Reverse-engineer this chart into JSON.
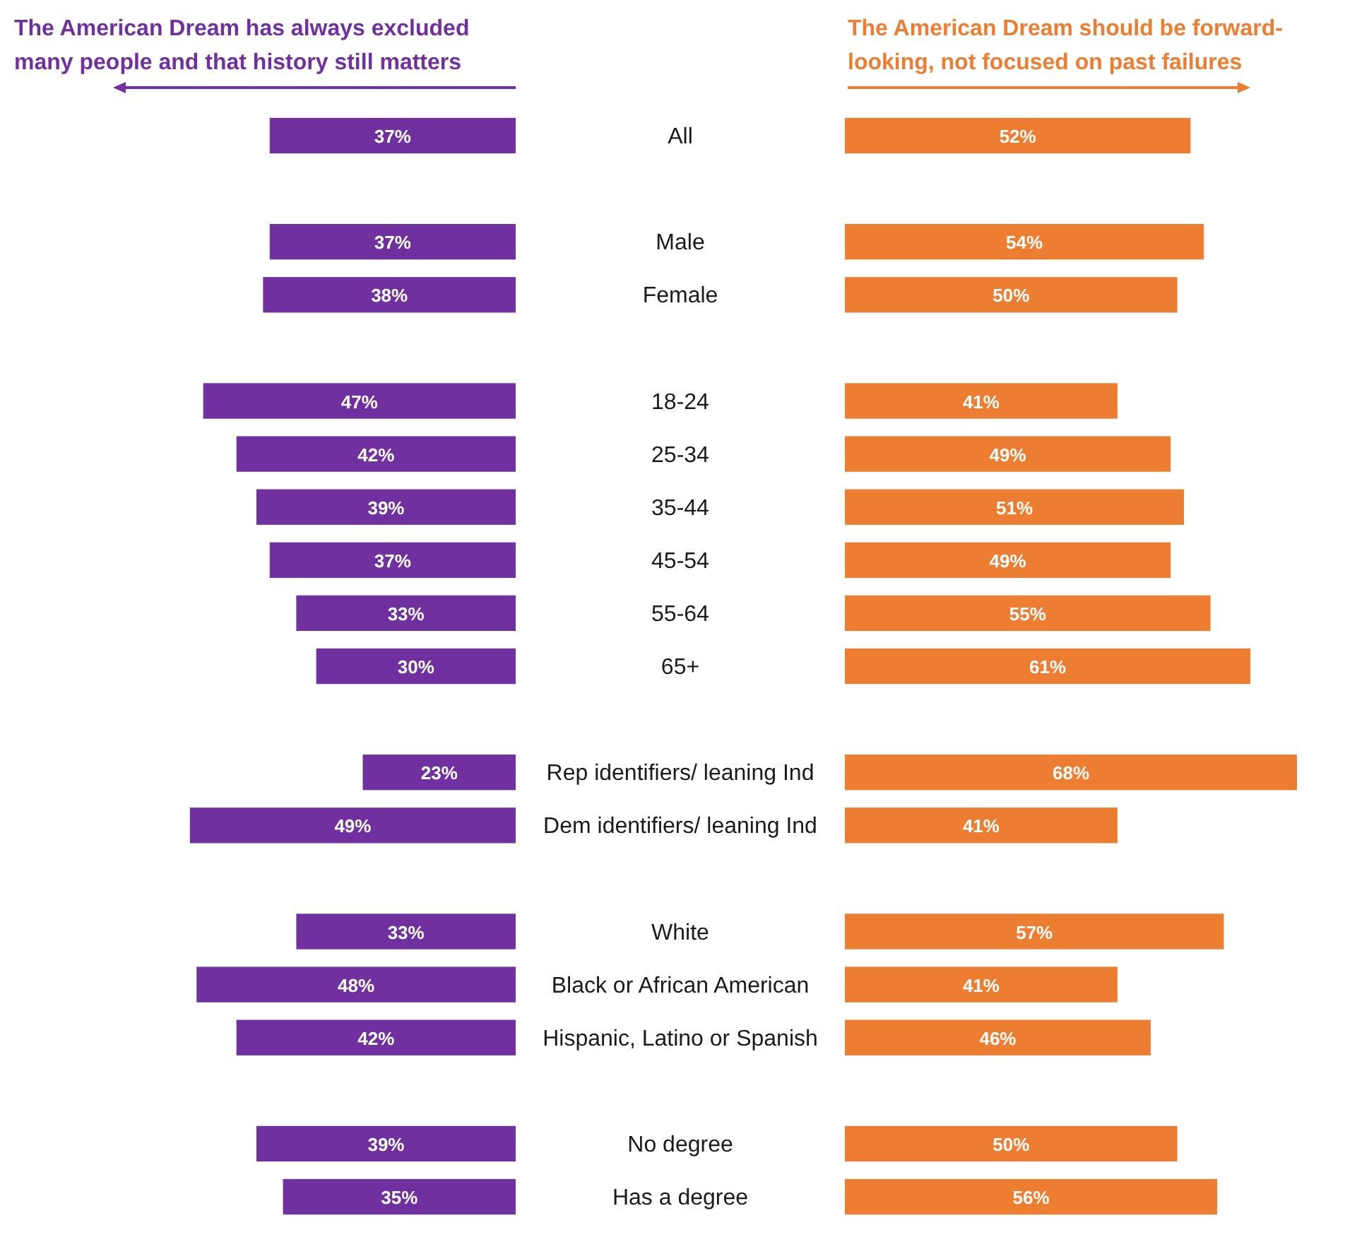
{
  "chart_data": [
    {
      "type": "bar",
      "orientation": "horizontal",
      "title": "The American Dream has always excluded many people and that history still matters",
      "categories": [
        "All",
        null,
        "Male",
        "Female",
        null,
        "18-24",
        "25-34",
        "35-44",
        "45-54",
        "55-64",
        "65+",
        null,
        "Rep identifiers/ leaning Ind",
        "Dem identifiers/ leaning Ind",
        null,
        "White",
        "Black or African American",
        "Hispanic, Latino or Spanish",
        null,
        "No degree",
        "Has a degree"
      ],
      "values": [
        37,
        null,
        37,
        38,
        null,
        47,
        42,
        39,
        37,
        33,
        30,
        null,
        23,
        49,
        null,
        33,
        48,
        42,
        null,
        39,
        35
      ],
      "value_labels": [
        "37%",
        null,
        "37%",
        "38%",
        null,
        "47%",
        "42%",
        "39%",
        "37%",
        "33%",
        "30%",
        null,
        "23%",
        "49%",
        null,
        "33%",
        "48%",
        "42%",
        null,
        "39%",
        "35%"
      ],
      "color": "#7030a0"
    },
    {
      "type": "bar",
      "orientation": "horizontal",
      "title": "The American Dream should be forward-looking, not focused on past failures",
      "categories": [
        null,
        null,
        null,
        null,
        null,
        null,
        null,
        null,
        null,
        null,
        null,
        null,
        null,
        null,
        null,
        null,
        null,
        null,
        null,
        null,
        null
      ],
      "values": [
        52,
        null,
        54,
        50,
        null,
        41,
        49,
        51,
        49,
        55,
        61,
        null,
        68,
        41,
        null,
        57,
        41,
        46,
        null,
        50,
        56
      ],
      "value_labels": [
        "52%",
        null,
        "54%",
        "50%",
        null,
        "41%",
        "49%",
        "51%",
        "49%",
        "55%",
        "61%",
        null,
        "68%",
        "41%",
        null,
        "57%",
        "41%",
        "46%",
        null,
        "50%",
        "56%"
      ],
      "color": "#ed7d31"
    }
  ]
}
